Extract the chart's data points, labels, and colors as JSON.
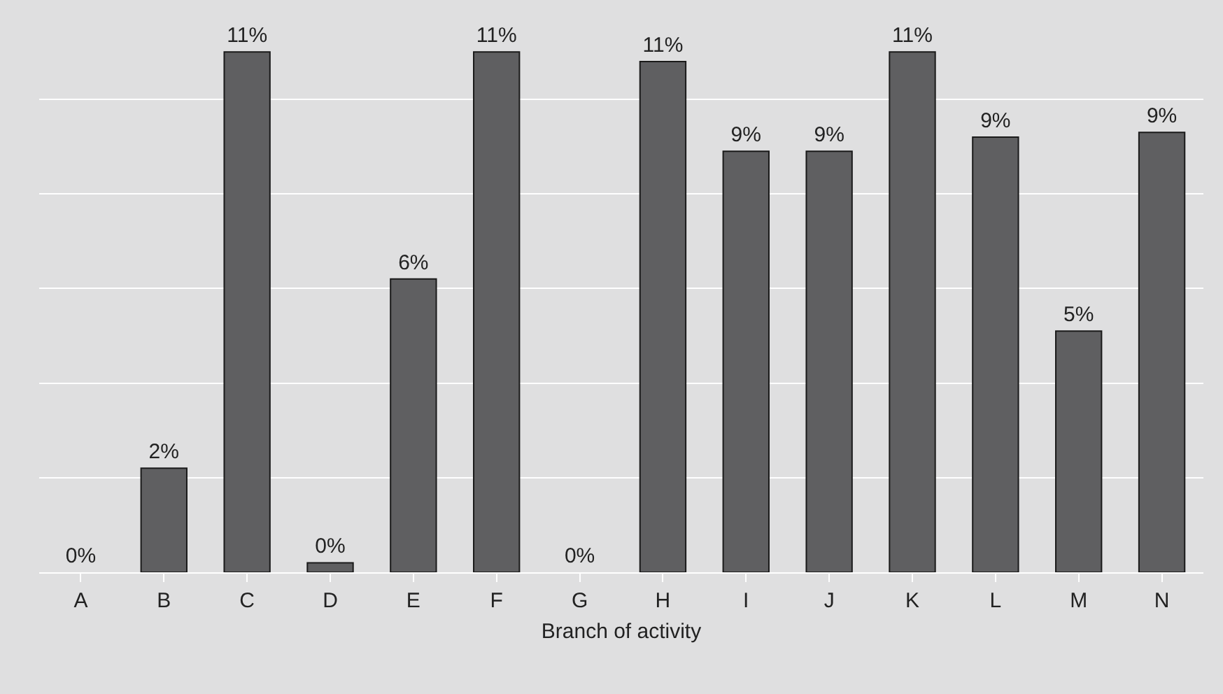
{
  "chart_data": {
    "type": "bar",
    "xlabel": "Branch of activity",
    "categories": [
      "A",
      "B",
      "C",
      "D",
      "E",
      "F",
      "G",
      "H",
      "I",
      "J",
      "K",
      "L",
      "M",
      "N"
    ],
    "values": [
      0,
      2.2,
      11.0,
      0.2,
      6.2,
      11.0,
      0,
      10.8,
      8.9,
      8.9,
      11.0,
      9.2,
      5.1,
      9.3
    ],
    "value_labels": [
      "0%",
      "2%",
      "11%",
      "0%",
      "6%",
      "11%",
      "0%",
      "11%",
      "9%",
      "9%",
      "11%",
      "9%",
      "5%",
      "9%"
    ],
    "color": "#5f5f61",
    "ylim": [
      0,
      12.1
    ],
    "yticks": [
      {
        "value": 0,
        "label": null
      },
      {
        "value": 2,
        "label": null
      },
      {
        "value": 4,
        "label": null
      },
      {
        "value": 6,
        "label": null
      },
      {
        "value": 8,
        "label": null
      },
      {
        "value": 10,
        "label": null
      }
    ],
    "grid": "y",
    "tick_labels": "x"
  }
}
